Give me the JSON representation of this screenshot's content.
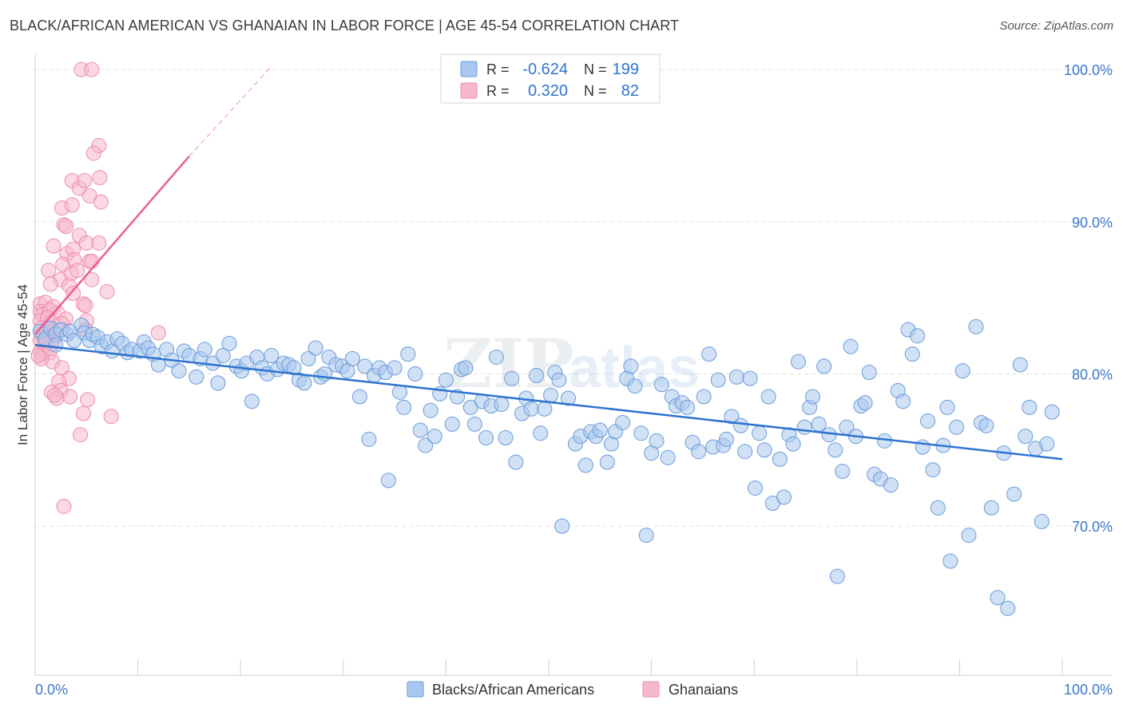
{
  "title": "BLACK/AFRICAN AMERICAN VS GHANAIAN IN LABOR FORCE | AGE 45-54 CORRELATION CHART",
  "source": "Source: ZipAtlas.com",
  "watermark": {
    "zip": "ZIP",
    "atlas": "atlas"
  },
  "colors": {
    "blue_fill": "#aac8ef",
    "blue_stroke": "#6a9bd8",
    "blue_line": "#2f74d0",
    "pink_fill": "#f7b8cc",
    "pink_stroke": "#ec8cac",
    "pink_line": "#e8608f",
    "tick_label": "#3d78c9",
    "grid": "#e3e3e3"
  },
  "legend_box": {
    "rows": [
      {
        "r_label": "R =",
        "r_value": "-0.624",
        "n_label": "N =",
        "n_value": "199",
        "color": "blue"
      },
      {
        "r_label": "R =",
        "r_value": "0.320",
        "n_label": "N =",
        "n_value": "82",
        "color": "pink"
      }
    ]
  },
  "bottom_legend": [
    {
      "label": "Blacks/African Americans",
      "color": "blue"
    },
    {
      "label": "Ghanaians",
      "color": "pink"
    }
  ],
  "chart_data": {
    "type": "scatter",
    "title": "BLACK/AFRICAN AMERICAN VS GHANAIAN IN LABOR FORCE | AGE 45-54 CORRELATION CHART",
    "xlabel": "",
    "ylabel": "In Labor Force | Age 45-54",
    "xlim": [
      0,
      100
    ],
    "ylim": [
      60.2,
      101
    ],
    "x_tick_labels": [
      "0.0%",
      "100.0%"
    ],
    "y_ticks": [
      70,
      80,
      90,
      100
    ],
    "y_tick_labels": [
      "70.0%",
      "80.0%",
      "90.0%",
      "100.0%"
    ],
    "grid": true,
    "legend_position": "top-center",
    "series": [
      {
        "name": "Blacks/African Americans",
        "color": "blue",
        "trend": {
          "x": [
            0,
            100
          ],
          "y": [
            81.9,
            74.4
          ]
        },
        "points": [
          [
            0.5,
            82.8
          ],
          [
            1.0,
            82.3
          ],
          [
            1.5,
            83.0
          ],
          [
            2.0,
            82.6
          ],
          [
            2.5,
            82.9
          ],
          [
            3.1,
            82.6
          ],
          [
            3.4,
            82.8
          ],
          [
            3.8,
            82.2
          ],
          [
            4.5,
            83.2
          ],
          [
            4.8,
            82.7
          ],
          [
            5.3,
            82.2
          ],
          [
            5.6,
            82.6
          ],
          [
            6.1,
            82.4
          ],
          [
            6.5,
            81.8
          ],
          [
            7.0,
            82.1
          ],
          [
            7.5,
            81.5
          ],
          [
            8.0,
            82.3
          ],
          [
            8.5,
            82.0
          ],
          [
            9.0,
            81.4
          ],
          [
            9.4,
            81.6
          ],
          [
            10.2,
            81.5
          ],
          [
            10.6,
            82.1
          ],
          [
            11.0,
            81.7
          ],
          [
            11.5,
            81.3
          ],
          [
            12.0,
            80.6
          ],
          [
            12.8,
            81.6
          ],
          [
            13.3,
            80.9
          ],
          [
            14.0,
            80.2
          ],
          [
            14.5,
            81.5
          ],
          [
            15.0,
            81.2
          ],
          [
            15.7,
            79.8
          ],
          [
            16.1,
            81.0
          ],
          [
            16.5,
            81.6
          ],
          [
            17.3,
            80.7
          ],
          [
            17.8,
            79.4
          ],
          [
            18.3,
            81.2
          ],
          [
            18.9,
            82.0
          ],
          [
            19.6,
            80.5
          ],
          [
            20.1,
            80.2
          ],
          [
            20.6,
            80.7
          ],
          [
            21.1,
            78.2
          ],
          [
            21.6,
            81.1
          ],
          [
            22.1,
            80.4
          ],
          [
            22.6,
            80.0
          ],
          [
            23.0,
            81.2
          ],
          [
            23.6,
            80.3
          ],
          [
            24.2,
            80.7
          ],
          [
            24.7,
            80.6
          ],
          [
            25.2,
            80.4
          ],
          [
            25.7,
            79.6
          ],
          [
            26.2,
            79.4
          ],
          [
            26.6,
            81.0
          ],
          [
            27.3,
            81.7
          ],
          [
            27.8,
            79.8
          ],
          [
            28.2,
            80.0
          ],
          [
            28.6,
            81.1
          ],
          [
            29.3,
            80.6
          ],
          [
            29.9,
            80.5
          ],
          [
            30.4,
            80.2
          ],
          [
            30.9,
            81.0
          ],
          [
            31.6,
            78.5
          ],
          [
            32.1,
            80.5
          ],
          [
            32.5,
            75.7
          ],
          [
            33.0,
            79.9
          ],
          [
            33.5,
            80.4
          ],
          [
            34.1,
            80.1
          ],
          [
            34.4,
            73.0
          ],
          [
            35.0,
            80.4
          ],
          [
            35.5,
            78.8
          ],
          [
            35.9,
            77.8
          ],
          [
            36.3,
            81.3
          ],
          [
            37.0,
            80.0
          ],
          [
            37.5,
            76.3
          ],
          [
            38.0,
            75.3
          ],
          [
            38.5,
            77.6
          ],
          [
            38.9,
            75.9
          ],
          [
            39.4,
            78.7
          ],
          [
            40.0,
            79.6
          ],
          [
            40.6,
            76.7
          ],
          [
            41.1,
            78.5
          ],
          [
            41.5,
            80.3
          ],
          [
            41.9,
            80.4
          ],
          [
            42.4,
            77.8
          ],
          [
            42.8,
            76.7
          ],
          [
            43.5,
            78.2
          ],
          [
            43.9,
            75.8
          ],
          [
            44.4,
            77.9
          ],
          [
            44.9,
            81.1
          ],
          [
            45.4,
            78.0
          ],
          [
            45.8,
            75.8
          ],
          [
            46.4,
            79.7
          ],
          [
            46.8,
            74.2
          ],
          [
            47.4,
            77.4
          ],
          [
            47.8,
            78.4
          ],
          [
            48.3,
            77.7
          ],
          [
            48.8,
            79.9
          ],
          [
            49.2,
            76.1
          ],
          [
            49.6,
            77.7
          ],
          [
            50.2,
            78.6
          ],
          [
            50.6,
            80.1
          ],
          [
            51.0,
            79.6
          ],
          [
            51.3,
            70.0
          ],
          [
            51.9,
            78.4
          ],
          [
            52.6,
            75.4
          ],
          [
            53.1,
            75.9
          ],
          [
            53.6,
            74.0
          ],
          [
            54.1,
            76.2
          ],
          [
            54.6,
            75.9
          ],
          [
            55.0,
            76.3
          ],
          [
            55.7,
            74.2
          ],
          [
            56.1,
            75.4
          ],
          [
            56.5,
            76.2
          ],
          [
            57.2,
            76.8
          ],
          [
            57.6,
            79.7
          ],
          [
            58.0,
            80.5
          ],
          [
            58.4,
            79.2
          ],
          [
            59.0,
            76.1
          ],
          [
            59.5,
            69.4
          ],
          [
            60.0,
            74.8
          ],
          [
            60.5,
            75.6
          ],
          [
            61.0,
            79.3
          ],
          [
            61.6,
            74.5
          ],
          [
            62.0,
            78.5
          ],
          [
            62.4,
            77.9
          ],
          [
            63.0,
            78.1
          ],
          [
            63.5,
            77.8
          ],
          [
            64.0,
            75.5
          ],
          [
            64.6,
            74.9
          ],
          [
            65.1,
            78.5
          ],
          [
            65.6,
            81.3
          ],
          [
            66.0,
            75.2
          ],
          [
            66.5,
            79.6
          ],
          [
            67.0,
            75.3
          ],
          [
            67.3,
            75.7
          ],
          [
            67.8,
            77.2
          ],
          [
            68.3,
            79.8
          ],
          [
            68.7,
            76.6
          ],
          [
            69.1,
            74.9
          ],
          [
            69.6,
            79.7
          ],
          [
            70.1,
            72.5
          ],
          [
            70.5,
            76.1
          ],
          [
            71.0,
            75.0
          ],
          [
            71.4,
            78.5
          ],
          [
            71.8,
            71.5
          ],
          [
            72.5,
            74.4
          ],
          [
            72.9,
            71.9
          ],
          [
            73.4,
            76.0
          ],
          [
            73.8,
            75.4
          ],
          [
            74.3,
            80.8
          ],
          [
            74.9,
            76.5
          ],
          [
            75.4,
            77.8
          ],
          [
            75.7,
            78.5
          ],
          [
            76.3,
            76.7
          ],
          [
            76.8,
            80.5
          ],
          [
            77.3,
            76.0
          ],
          [
            77.9,
            75.0
          ],
          [
            78.1,
            66.7
          ],
          [
            78.6,
            73.6
          ],
          [
            79.0,
            76.5
          ],
          [
            79.4,
            81.8
          ],
          [
            79.9,
            75.9
          ],
          [
            80.4,
            77.9
          ],
          [
            80.8,
            78.1
          ],
          [
            81.2,
            80.1
          ],
          [
            81.7,
            73.4
          ],
          [
            82.3,
            73.1
          ],
          [
            82.7,
            75.6
          ],
          [
            83.3,
            72.7
          ],
          [
            84.0,
            78.9
          ],
          [
            84.5,
            78.2
          ],
          [
            85.0,
            82.9
          ],
          [
            85.4,
            81.3
          ],
          [
            85.9,
            82.5
          ],
          [
            86.4,
            75.2
          ],
          [
            86.9,
            76.9
          ],
          [
            87.4,
            73.7
          ],
          [
            87.9,
            71.2
          ],
          [
            88.4,
            75.3
          ],
          [
            88.8,
            77.8
          ],
          [
            89.1,
            67.7
          ],
          [
            89.7,
            76.5
          ],
          [
            90.3,
            80.2
          ],
          [
            90.9,
            69.4
          ],
          [
            91.6,
            83.1
          ],
          [
            92.1,
            76.8
          ],
          [
            92.6,
            76.6
          ],
          [
            93.1,
            71.2
          ],
          [
            93.7,
            65.3
          ],
          [
            94.3,
            74.8
          ],
          [
            94.7,
            64.6
          ],
          [
            95.3,
            72.1
          ],
          [
            95.9,
            80.6
          ],
          [
            96.4,
            75.9
          ],
          [
            96.8,
            77.8
          ],
          [
            97.4,
            75.1
          ],
          [
            98.0,
            70.3
          ],
          [
            98.5,
            75.4
          ],
          [
            99.0,
            77.5
          ],
          [
            2.0,
            81.9
          ]
        ]
      },
      {
        "name": "Ghanaians",
        "color": "pink",
        "trend": {
          "x": [
            0,
            15
          ],
          "y": [
            82.6,
            94.3
          ]
        },
        "trend_dashed": {
          "x": [
            15,
            23
          ],
          "y": [
            94.3,
            100.2
          ]
        },
        "points": [
          [
            4.5,
            100.0
          ],
          [
            5.5,
            100.0
          ],
          [
            6.2,
            95.0
          ],
          [
            5.7,
            94.5
          ],
          [
            3.6,
            92.7
          ],
          [
            6.3,
            92.9
          ],
          [
            4.3,
            92.2
          ],
          [
            4.8,
            92.7
          ],
          [
            5.3,
            91.7
          ],
          [
            6.4,
            91.3
          ],
          [
            2.6,
            90.9
          ],
          [
            3.6,
            91.1
          ],
          [
            2.8,
            89.8
          ],
          [
            3.0,
            89.7
          ],
          [
            4.3,
            89.1
          ],
          [
            1.8,
            88.4
          ],
          [
            5.0,
            88.6
          ],
          [
            6.2,
            88.6
          ],
          [
            3.1,
            87.9
          ],
          [
            3.7,
            88.2
          ],
          [
            2.7,
            87.2
          ],
          [
            3.8,
            87.5
          ],
          [
            5.3,
            87.4
          ],
          [
            5.5,
            87.4
          ],
          [
            1.3,
            86.8
          ],
          [
            2.5,
            86.2
          ],
          [
            3.5,
            86.6
          ],
          [
            4.1,
            86.8
          ],
          [
            5.5,
            86.2
          ],
          [
            1.5,
            85.9
          ],
          [
            3.3,
            85.8
          ],
          [
            3.7,
            85.3
          ],
          [
            7.0,
            85.4
          ],
          [
            0.5,
            84.6
          ],
          [
            1.0,
            84.7
          ],
          [
            1.8,
            84.4
          ],
          [
            4.7,
            84.6
          ],
          [
            4.9,
            84.5
          ],
          [
            0.5,
            84.1
          ],
          [
            0.7,
            83.9
          ],
          [
            1.4,
            84.2
          ],
          [
            2.2,
            84.0
          ],
          [
            3.0,
            83.6
          ],
          [
            0.5,
            83.5
          ],
          [
            1.2,
            83.7
          ],
          [
            1.6,
            83.4
          ],
          [
            2.6,
            83.3
          ],
          [
            5.0,
            83.5
          ],
          [
            0.6,
            83.0
          ],
          [
            1.1,
            82.9
          ],
          [
            1.3,
            83.0
          ],
          [
            1.5,
            82.8
          ],
          [
            2.0,
            82.7
          ],
          [
            2.6,
            82.9
          ],
          [
            4.9,
            82.9
          ],
          [
            0.6,
            82.6
          ],
          [
            0.9,
            82.4
          ],
          [
            1.3,
            82.3
          ],
          [
            1.8,
            82.3
          ],
          [
            12.0,
            82.7
          ],
          [
            0.5,
            82.2
          ],
          [
            0.9,
            82.0
          ],
          [
            1.6,
            81.9
          ],
          [
            0.5,
            81.5
          ],
          [
            0.7,
            81.3
          ],
          [
            1.4,
            81.4
          ],
          [
            1.7,
            80.8
          ],
          [
            2.6,
            80.4
          ],
          [
            0.6,
            81.0
          ],
          [
            3.3,
            79.7
          ],
          [
            2.3,
            79.5
          ],
          [
            1.6,
            78.8
          ],
          [
            2.5,
            78.9
          ],
          [
            3.4,
            78.5
          ],
          [
            2.1,
            78.4
          ],
          [
            5.1,
            78.3
          ],
          [
            1.9,
            78.6
          ],
          [
            4.7,
            77.4
          ],
          [
            7.4,
            77.2
          ],
          [
            4.4,
            76.0
          ],
          [
            2.8,
            71.3
          ],
          [
            0.3,
            81.2
          ]
        ]
      }
    ]
  }
}
